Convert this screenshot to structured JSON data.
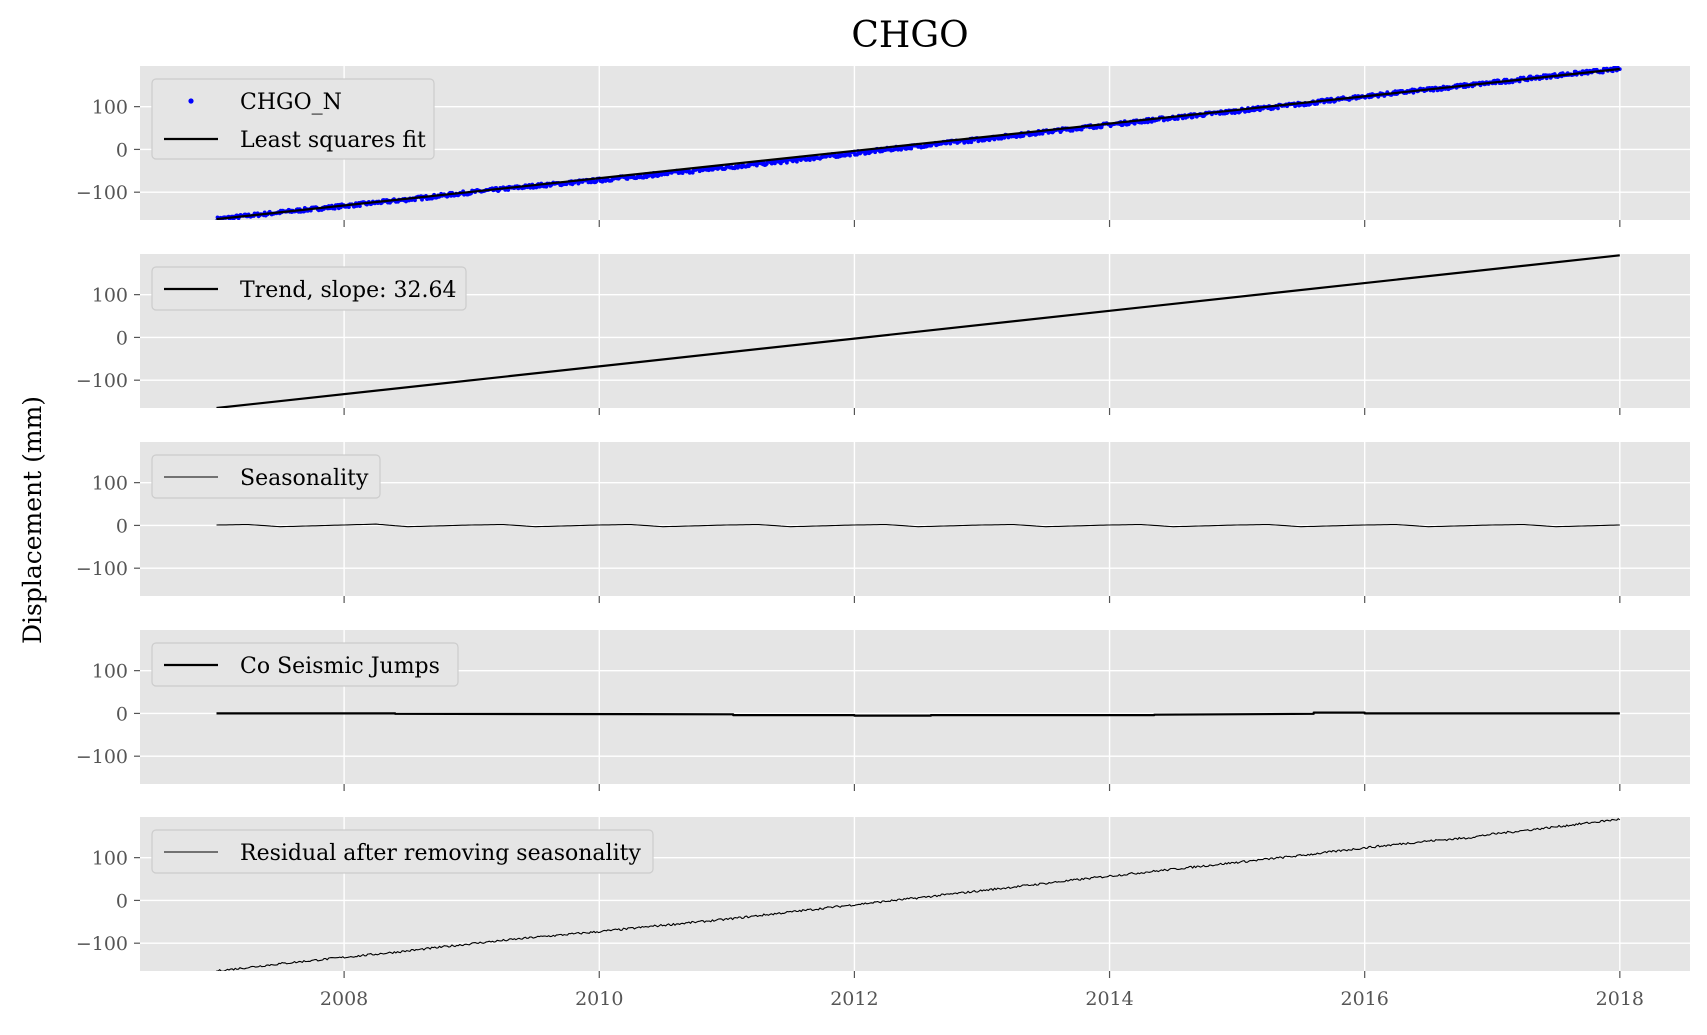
{
  "chart_data": {
    "type": "line",
    "title": "CHGO",
    "ylabel": "Displacement (mm)",
    "xlim": [
      2006.4,
      2018.55
    ],
    "ylim": [
      -165,
      195
    ],
    "x_ticks": [
      2008,
      2010,
      2012,
      2014,
      2016,
      2018
    ],
    "y_ticks": [
      -100,
      0,
      100
    ],
    "grid": true,
    "legend_position": "upper-left",
    "colors": {
      "observed": "#0000ff",
      "fit": "#000000",
      "panel_bg": "#e5e5e5",
      "grid": "#ffffff",
      "tick_text": "#555555"
    },
    "panels": [
      {
        "series": [
          {
            "name": "CHGO_N",
            "kind": "points",
            "x": [
              2007.0,
              2007.5,
              2008.0,
              2008.5,
              2009.0,
              2009.5,
              2010.0,
              2010.5,
              2011.0,
              2011.5,
              2012.0,
              2012.5,
              2013.0,
              2013.5,
              2014.0,
              2014.5,
              2015.0,
              2015.5,
              2016.0,
              2016.5,
              2017.0,
              2017.5,
              2018.0
            ],
            "y": [
              -163,
              -147,
              -132,
              -117,
              -100,
              -85,
              -72,
              -57,
              -42,
              -26,
              -9,
              8,
              24,
              41,
              58,
              74,
              90,
              106,
              124,
              140,
              156,
              173,
              188
            ]
          },
          {
            "name": "Least squares fit",
            "kind": "line",
            "x": [
              2007.0,
              2018.0
            ],
            "y": [
              -163,
              188
            ]
          }
        ]
      },
      {
        "series": [
          {
            "name": "Trend, slope: 32.64",
            "kind": "line",
            "x": [
              2007.0,
              2018.0
            ],
            "y": [
              -165,
              192
            ]
          }
        ]
      },
      {
        "series": [
          {
            "name": "Seasonality",
            "kind": "thin",
            "x": [
              2007.0,
              2007.25,
              2007.5,
              2007.75,
              2008.0,
              2008.25,
              2008.5,
              2008.75,
              2009.0,
              2009.25,
              2009.5,
              2009.75,
              2010.0,
              2010.25,
              2010.5,
              2010.75,
              2011.0,
              2011.25,
              2011.5,
              2011.75,
              2012.0,
              2012.25,
              2012.5,
              2012.75,
              2013.0,
              2013.25,
              2013.5,
              2013.75,
              2014.0,
              2014.25,
              2014.5,
              2014.75,
              2015.0,
              2015.25,
              2015.5,
              2015.75,
              2016.0,
              2016.25,
              2016.5,
              2016.75,
              2017.0,
              2017.25,
              2017.5,
              2017.75,
              2018.0
            ],
            "y": [
              1,
              2,
              -3,
              -1,
              1,
              3,
              -3,
              -1,
              1,
              2,
              -3,
              -1,
              1,
              2,
              -3,
              -1,
              1,
              2,
              -3,
              -1,
              1,
              2,
              -3,
              -1,
              1,
              2,
              -3,
              -1,
              1,
              2,
              -3,
              -1,
              1,
              2,
              -3,
              -1,
              1,
              2,
              -3,
              -1,
              1,
              2,
              -3,
              -1,
              1
            ]
          }
        ]
      },
      {
        "series": [
          {
            "name": "Co Seismic Jumps",
            "kind": "line",
            "x": [
              2007.0,
              2008.4,
              2008.4,
              2011.05,
              2011.05,
              2012.0,
              2012.0,
              2012.6,
              2012.6,
              2014.35,
              2014.35,
              2015.6,
              2015.6,
              2016.0,
              2016.0,
              2018.0
            ],
            "y": [
              0,
              0,
              -1,
              -2,
              -4,
              -4,
              -5,
              -5,
              -4,
              -4,
              -3,
              -1,
              2,
              2,
              0,
              0
            ]
          }
        ]
      },
      {
        "series": [
          {
            "name": "Residual after removing seasonality",
            "kind": "thin",
            "x": [
              2007.0,
              2007.5,
              2008.0,
              2008.5,
              2009.0,
              2009.5,
              2010.0,
              2010.5,
              2011.0,
              2011.5,
              2012.0,
              2012.5,
              2013.0,
              2013.5,
              2014.0,
              2014.5,
              2015.0,
              2015.5,
              2016.0,
              2016.5,
              2016.8,
              2017.0,
              2017.5,
              2018.0
            ],
            "y": [
              -165,
              -148,
              -133,
              -118,
              -101,
              -86,
              -73,
              -58,
              -44,
              -27,
              -10,
              6,
              23,
              40,
              57,
              73,
              89,
              105,
              123,
              139,
              146,
              155,
              172,
              190
            ]
          }
        ]
      }
    ]
  }
}
